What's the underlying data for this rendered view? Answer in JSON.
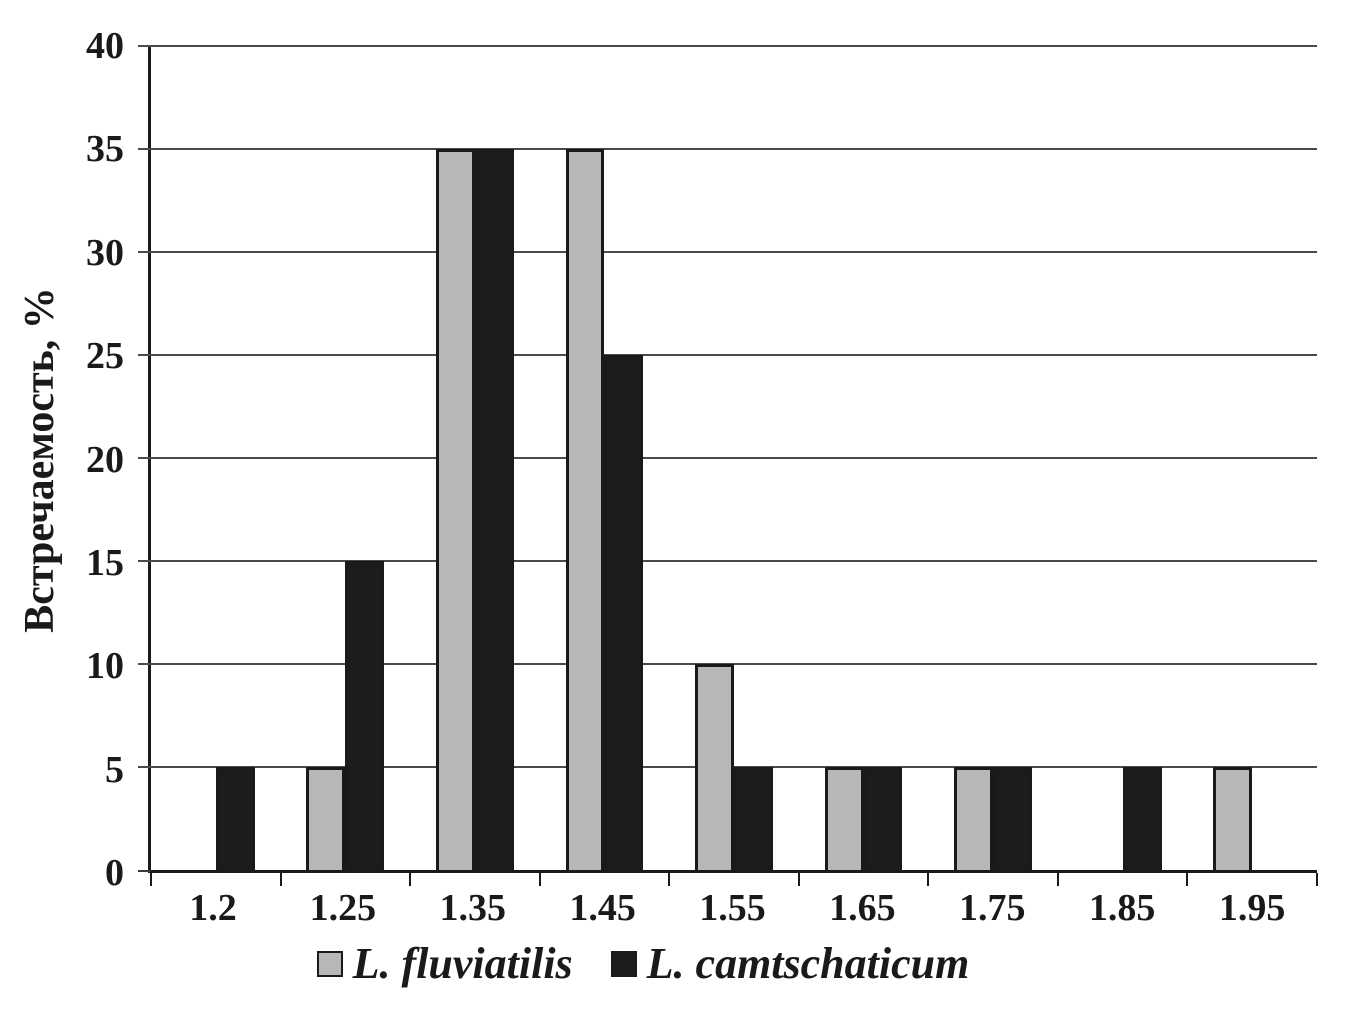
{
  "figure": {
    "background": "#ffffff"
  },
  "chart_data": {
    "type": "bar",
    "title": "",
    "ylabel": "Встречаемость, %",
    "xlabel": "",
    "ylim": [
      0,
      40
    ],
    "yticks": [
      0,
      5,
      10,
      15,
      20,
      25,
      30,
      35,
      40
    ],
    "categories": [
      "1.2",
      "1.25",
      "1.35",
      "1.45",
      "1.55",
      "1.65",
      "1.75",
      "1.85",
      "1.95"
    ],
    "series": [
      {
        "name": "L. fluviatilis",
        "color": "#b7b7b7",
        "border": "#1a1a1a",
        "values": [
          0,
          5,
          35,
          35,
          10,
          5,
          5,
          0,
          5
        ]
      },
      {
        "name": "L. camtschaticum",
        "color": "#1c1c1c",
        "border": "#1a1a1a",
        "values": [
          5,
          15,
          35,
          25,
          5,
          5,
          5,
          5,
          0
        ]
      }
    ],
    "grid": true,
    "legend_position": "bottom",
    "colors": {
      "gridline": "#4a4a4a",
      "axis": "#1a1a1a",
      "text": "#1a1a1a"
    }
  }
}
